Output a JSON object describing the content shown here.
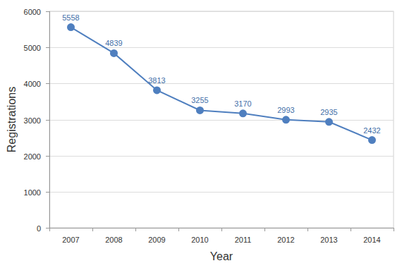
{
  "chart_data": {
    "type": "line",
    "x_label": "Year",
    "y_label": "Registrations",
    "categories": [
      "2007",
      "2008",
      "2009",
      "2010",
      "2011",
      "2012",
      "2013",
      "2014"
    ],
    "values": [
      5558,
      4839,
      3813,
      3255,
      3170,
      2993,
      2935,
      2432
    ],
    "color": "#4f7fbf",
    "marker": "circle",
    "line_style": "solid",
    "ylim": [
      0,
      6000
    ],
    "yticks": [
      0,
      1000,
      2000,
      3000,
      4000,
      5000,
      6000
    ],
    "grid": true,
    "data_labels": true
  }
}
